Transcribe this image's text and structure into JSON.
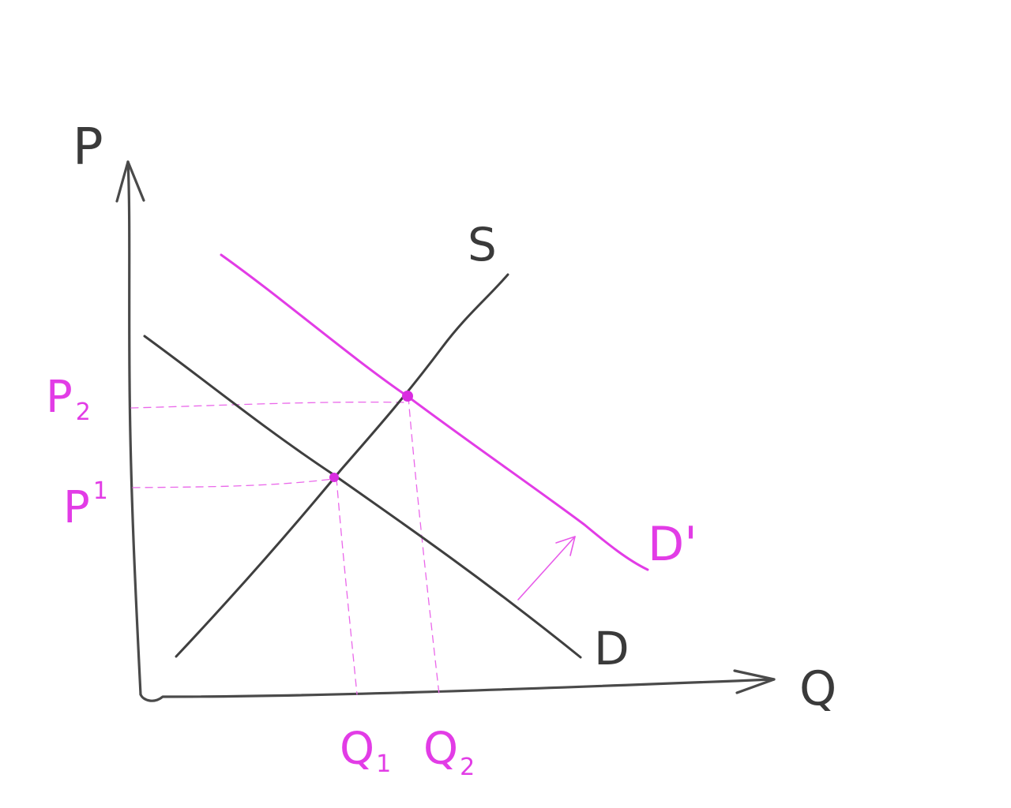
{
  "diagram": {
    "axes": {
      "y_label": "P",
      "x_label": "Q"
    },
    "curves": {
      "supply_label": "S",
      "demand_label": "D",
      "shifted_demand_label": "D'"
    },
    "levels": {
      "p1": {
        "base": "P",
        "sub": "1"
      },
      "p2": {
        "base": "P",
        "sub": "2"
      },
      "q1": {
        "base": "Q",
        "sub": "1"
      },
      "q2": {
        "base": "Q",
        "sub": "2"
      }
    },
    "colors": {
      "ink": "#3f3f3f",
      "highlight": "#e23ce6",
      "background": "#ffffff"
    },
    "shift_direction": "rightward demand shift (arrow-icon)"
  }
}
